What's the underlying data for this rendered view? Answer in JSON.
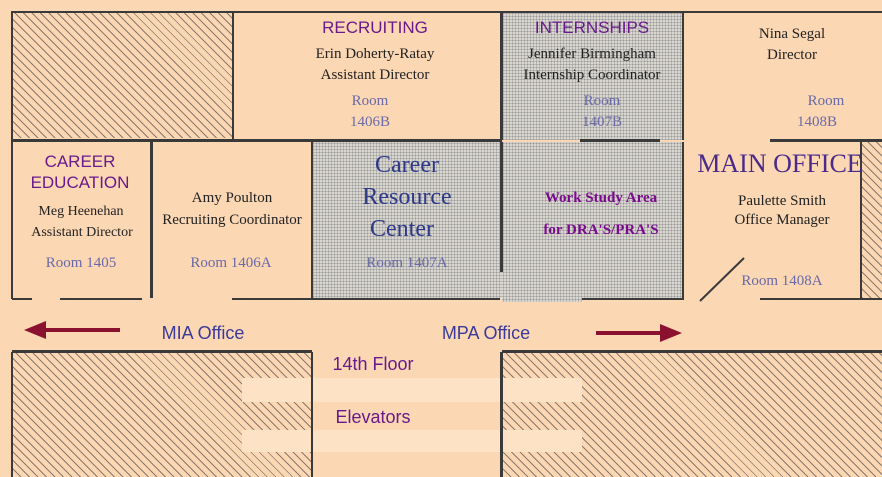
{
  "rooms": {
    "recruiting": {
      "title": "RECRUITING",
      "person": "Erin Doherty-Ratay",
      "role": "Assistant Director",
      "room_label": "Room",
      "room_number": "1406B"
    },
    "internships": {
      "title": "INTERNSHIPS",
      "person": "Jennifer Birmingham",
      "role": "Internship Coordinator",
      "room_label": "Room",
      "room_number": "1407B"
    },
    "director": {
      "person": "Nina Segal",
      "role": "Director",
      "room_label": "Room",
      "room_number": "1408B"
    },
    "career_education": {
      "title_line1": "CAREER",
      "title_line2": "EDUCATION",
      "person": "Meg Heenehan",
      "role": "Assistant Director",
      "room": "Room 1405"
    },
    "recruiting_coord": {
      "person": "Amy Poulton",
      "role": "Recruiting Coordinator",
      "room": "Room 1406A"
    },
    "career_resource_center": {
      "line1": "Career",
      "line2": "Resource",
      "line3": "Center",
      "room": "Room 1407A"
    },
    "work_study": {
      "line1": "Work Study Area",
      "line2": "for DRA'S/PRA'S"
    },
    "main_office": {
      "title": "MAIN OFFICE",
      "person": "Paulette Smith",
      "role": "Office Manager",
      "room": "Room 1408A"
    }
  },
  "hallway": {
    "left_office": "MIA Office",
    "right_office": "MPA Office"
  },
  "elevator_lobby": {
    "floor": "14th Floor",
    "elevators": "Elevators"
  },
  "colors": {
    "floor": "#fbd7b4",
    "wall": "#3a3a3a",
    "shared_area": "#d9d6cf",
    "arrow": "#8a1230"
  }
}
